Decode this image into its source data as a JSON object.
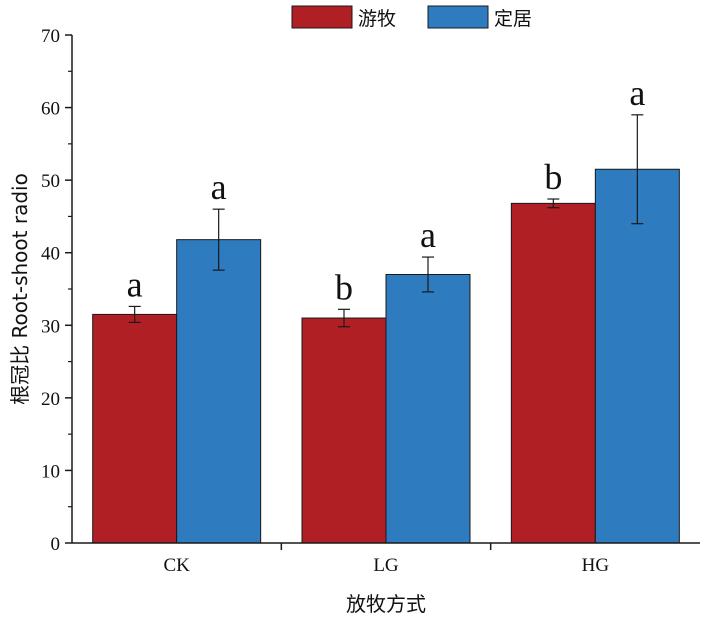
{
  "chart_data": {
    "type": "bar",
    "xlabel": "放牧方式",
    "ylabel": "根冠比 Root-shoot radio",
    "categories": [
      "CK",
      "LG",
      "HG"
    ],
    "ylim": [
      0,
      70
    ],
    "yticks": [
      0,
      10,
      20,
      30,
      40,
      50,
      60,
      70
    ],
    "legend_position": "top-center",
    "grid": false,
    "series": [
      {
        "name": "游牧",
        "color": "#B01F24",
        "values": [
          31.5,
          31.0,
          46.8
        ],
        "errors": [
          1.1,
          1.2,
          0.6
        ],
        "labels": [
          "a",
          "b",
          "b"
        ]
      },
      {
        "name": "定居",
        "color": "#2F7BC0",
        "values": [
          41.8,
          37.0,
          51.5
        ],
        "errors": [
          4.2,
          2.4,
          7.5
        ],
        "labels": [
          "a",
          "a",
          "a"
        ]
      }
    ]
  }
}
